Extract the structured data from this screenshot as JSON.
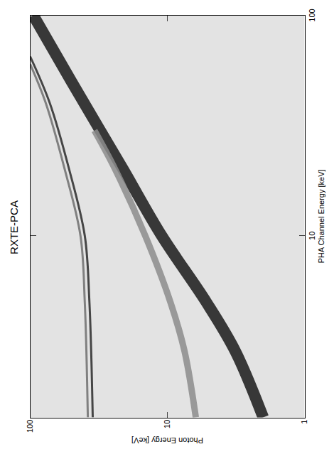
{
  "chart_data": {
    "type": "line",
    "title": "RXTE-PCA",
    "x_label": "PHA Channel Energy [keV]",
    "y_label": "Photon Energy [keV]",
    "log": true,
    "grid": false,
    "xlim": [
      1.5,
      100
    ],
    "ylim": [
      1,
      100
    ],
    "xticks": [
      10,
      100
    ],
    "yticks": [
      1,
      10,
      100
    ],
    "series": [
      {
        "color": "#1a1a1a",
        "x": [
          1.5,
          3,
          5,
          10,
          20,
          50,
          100
        ],
        "values": [
          2.0,
          3.2,
          5.2,
          11,
          21,
          50,
          95
        ]
      },
      {
        "color": "#8c8c8c",
        "x": [
          1.5,
          3,
          5,
          10,
          20,
          30
        ],
        "values": [
          6.2,
          7.5,
          9.5,
          14.5,
          24,
          34
        ]
      },
      {
        "color": "#2a2a2a",
        "x": [
          1.5,
          5,
          10,
          20,
          40,
          65
        ],
        "values": [
          35,
          37,
          40,
          52,
          72,
          100
        ]
      },
      {
        "color": "#6e6e6e",
        "x": [
          1.5,
          5,
          10,
          20,
          40,
          60
        ],
        "values": [
          38,
          40,
          43,
          56,
          77,
          100
        ]
      }
    ]
  }
}
